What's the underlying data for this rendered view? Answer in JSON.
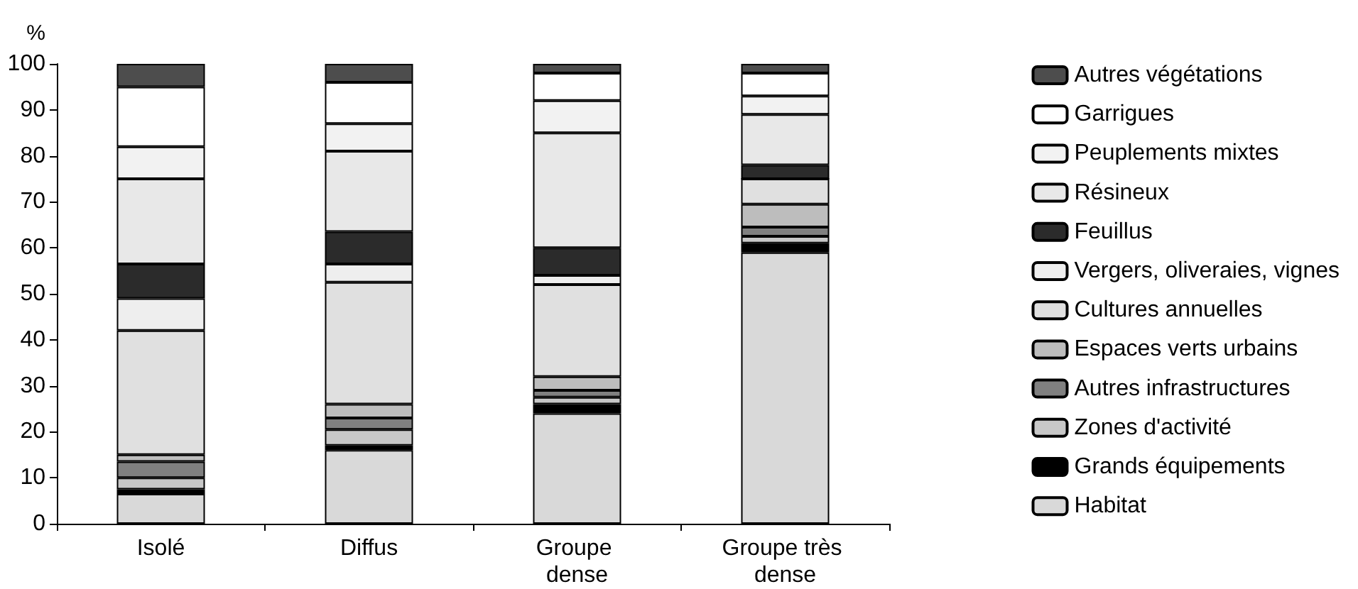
{
  "chart_data": {
    "type": "bar",
    "stacked": true,
    "ylabel": "%",
    "categories": [
      "Isolé",
      "Diffus",
      "Groupe dense",
      "Groupe très dense"
    ],
    "ylim": [
      0,
      100
    ],
    "yticks": [
      0,
      10,
      20,
      30,
      40,
      50,
      60,
      70,
      80,
      90,
      100
    ],
    "grid": false,
    "legend": "right",
    "series": [
      {
        "name": "Habitat",
        "color": "#d9d9d9",
        "values": [
          6.5,
          16,
          24,
          59
        ]
      },
      {
        "name": "Grands équipements",
        "color": "#000000",
        "values": [
          1,
          1,
          2,
          2
        ]
      },
      {
        "name": "Zones d'activité",
        "color": "#c8c8c8",
        "values": [
          2.5,
          3.5,
          1.5,
          1.5
        ]
      },
      {
        "name": "Autres infrastructures",
        "color": "#808080",
        "values": [
          3.5,
          2.5,
          1.5,
          2
        ]
      },
      {
        "name": "Espaces verts urbains",
        "color": "#bdbdbd",
        "values": [
          1.5,
          3,
          3,
          5
        ]
      },
      {
        "name": "Cultures annuelles",
        "color": "#e0e0e0",
        "values": [
          27,
          26.5,
          20,
          5.5
        ]
      },
      {
        "name": "Vergers, oliveraies, vignes",
        "color": "#eeeeee",
        "values": [
          7,
          4,
          2,
          0
        ]
      },
      {
        "name": "Feuillus",
        "color": "#2b2b2b",
        "values": [
          7.5,
          7,
          6,
          3
        ]
      },
      {
        "name": "Résineux",
        "color": "#e8e8e8",
        "values": [
          18.5,
          17.5,
          25,
          11
        ]
      },
      {
        "name": "Peuplements mixtes",
        "color": "#f2f2f2",
        "values": [
          7,
          6,
          7,
          4
        ]
      },
      {
        "name": "Garrigues",
        "color": "#ffffff",
        "values": [
          13,
          9,
          6,
          5
        ]
      },
      {
        "name": "Autres végétations",
        "color": "#4d4d4d",
        "values": [
          5,
          4,
          2,
          2
        ]
      }
    ]
  }
}
